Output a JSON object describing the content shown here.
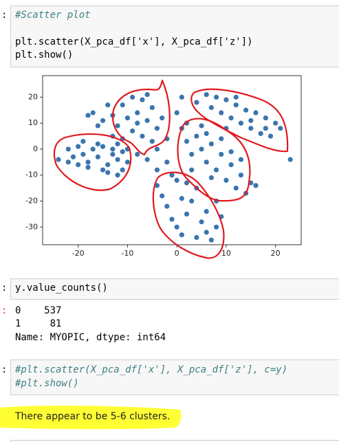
{
  "cell1": {
    "prompt": ":",
    "comment": "#Scatter plot",
    "lines": [
      "plt.scatter(X_pca_df['x'], X_pca_df['z'])",
      "plt.show()"
    ]
  },
  "chart_data": {
    "type": "scatter",
    "color": "#3a75ae",
    "xlim": [
      -27.2,
      25.2
    ],
    "ylim": [
      -36.8,
      28.3
    ],
    "xticks": [
      -20,
      -10,
      0,
      10,
      20
    ],
    "yticks": [
      20,
      10,
      0,
      -10,
      -20,
      -30
    ],
    "x": [
      -24,
      -22,
      -21,
      -20,
      -19,
      -18,
      -17,
      -16,
      -15,
      -14,
      -13,
      -12,
      -11,
      -12,
      -15,
      -18,
      -20,
      -16,
      -13,
      -11,
      -22,
      -14,
      -10,
      -19,
      -13,
      -11,
      -9,
      -7,
      -5,
      -12,
      -10,
      -8,
      -6,
      -4,
      -13,
      -11,
      -9,
      -7,
      -5,
      -10,
      -8,
      -6,
      -4,
      -14,
      -17,
      -15,
      -6,
      -3,
      -12,
      -8,
      4,
      6,
      8,
      10,
      12,
      14,
      16,
      18,
      20,
      9,
      11,
      13,
      15,
      17,
      19,
      7,
      12,
      15,
      18,
      10,
      21,
      23,
      1,
      2,
      3,
      4,
      5,
      6,
      7,
      8,
      9,
      10,
      11,
      12,
      13,
      14,
      15,
      2,
      5,
      7,
      9,
      11,
      13,
      16,
      3,
      6,
      -3,
      -2,
      -1,
      0,
      1,
      2,
      3,
      4,
      5,
      6,
      7,
      8,
      9,
      0,
      2,
      -4,
      4,
      6,
      1,
      8,
      -18,
      -16,
      -2,
      -1,
      0,
      -4,
      1,
      -2
    ],
    "values": [
      -4,
      0,
      -3,
      1,
      -2,
      -5,
      0,
      -3,
      1,
      -6,
      -2,
      -4,
      -8,
      -10,
      -8,
      -7,
      -6,
      2,
      0,
      -1,
      -5,
      -9,
      -5,
      3,
      13,
      17,
      20,
      19,
      16,
      9,
      12,
      14,
      11,
      8,
      5,
      4,
      7,
      5,
      3,
      0,
      -2,
      -4,
      0,
      17,
      14,
      11,
      21,
      12,
      2,
      10,
      18,
      21,
      20,
      19,
      17,
      15,
      14,
      12,
      10,
      14,
      12,
      10,
      8,
      6,
      5,
      16,
      20,
      11,
      8,
      8,
      8,
      -4,
      8,
      3,
      -2,
      5,
      0,
      -5,
      2,
      -8,
      -2,
      -12,
      -6,
      -15,
      -10,
      -17,
      -13,
      10,
      9,
      -11,
      4,
      -1,
      -4,
      -14,
      -8,
      6,
      -18,
      -22,
      -27,
      -30,
      -33,
      -25,
      -20,
      -15,
      -28,
      -32,
      -35,
      -30,
      -26,
      -12,
      -13,
      -14,
      -34,
      -24,
      -19,
      -20,
      13,
      9,
      -5,
      -10,
      14,
      -8,
      20,
      4
    ]
  },
  "cell2": {
    "prompt": ":",
    "code": "y.value_counts()",
    "out_prompt": ":",
    "output": [
      "0    537",
      "1     81",
      "Name: MYOPIC, dtype: int64"
    ]
  },
  "cell3": {
    "prompt": ":",
    "lines": [
      "#plt.scatter(X_pca_df['x'], X_pca_df['z'], c=y)",
      "#plt.show()"
    ]
  },
  "markdown": {
    "text": "There appear to be 5-6 clusters."
  }
}
